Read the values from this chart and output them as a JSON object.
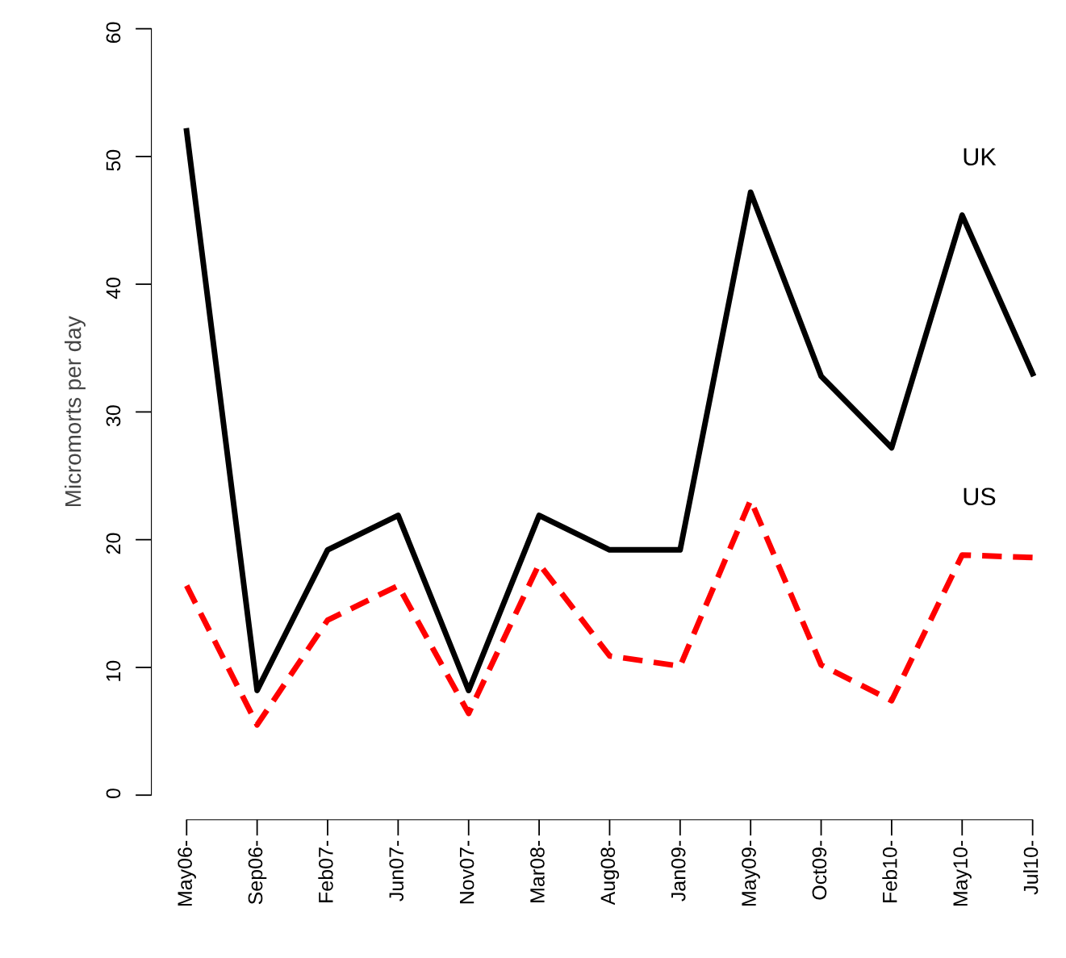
{
  "chart_data": {
    "type": "line",
    "ylabel": "Micromorts per day",
    "categories": [
      "May06-",
      "Sep06-",
      "Feb07-",
      "Jun07-",
      "Nov07-",
      "Mar08-",
      "Aug08-",
      "Jan09-",
      "May09-",
      "Oct09-",
      "Feb10-",
      "May10-",
      "Jul10-"
    ],
    "series": [
      {
        "name": "UK",
        "color": "#000000",
        "line_style": "solid",
        "values": [
          52,
          8.2,
          19.2,
          21.9,
          8.2,
          21.9,
          19.2,
          19.2,
          47.2,
          32.8,
          27.2,
          45.4,
          33.0
        ]
      },
      {
        "name": "US",
        "color": "#ff0000",
        "line_style": "dashed",
        "values": [
          16.4,
          5.5,
          13.7,
          16.4,
          6.4,
          18.1,
          10.9,
          10.1,
          23.1,
          10.2,
          7.4,
          18.8,
          18.6
        ]
      }
    ],
    "ylim": [
      0,
      60
    ],
    "yticks": [
      0,
      10,
      20,
      30,
      40,
      50,
      60
    ],
    "grid": false,
    "legend": false
  }
}
